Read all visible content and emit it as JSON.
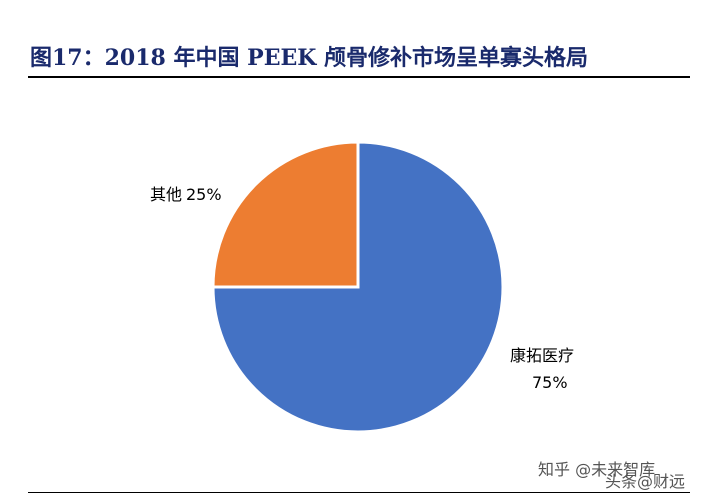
{
  "title": "图17：2018 年中国 PEEK 颅骨修补市场呈单寡头格局",
  "chart_data": {
    "type": "pie",
    "title": "图17：2018 年中国 PEEK 颅骨修补市场呈单寡头格局",
    "slices": [
      {
        "label": "康拓医疗",
        "value": 75,
        "value_label": "75%",
        "color": "#4472C4"
      },
      {
        "label": "其他",
        "value": 25,
        "value_label": "25%",
        "color": "#ED7D31"
      }
    ],
    "start_angle": "12 o'clock",
    "direction": "clockwise",
    "legend": "none",
    "label_position": "outside"
  },
  "watermark": {
    "text": "知乎 @未来智库",
    "overlay_text": "头条@财远"
  }
}
